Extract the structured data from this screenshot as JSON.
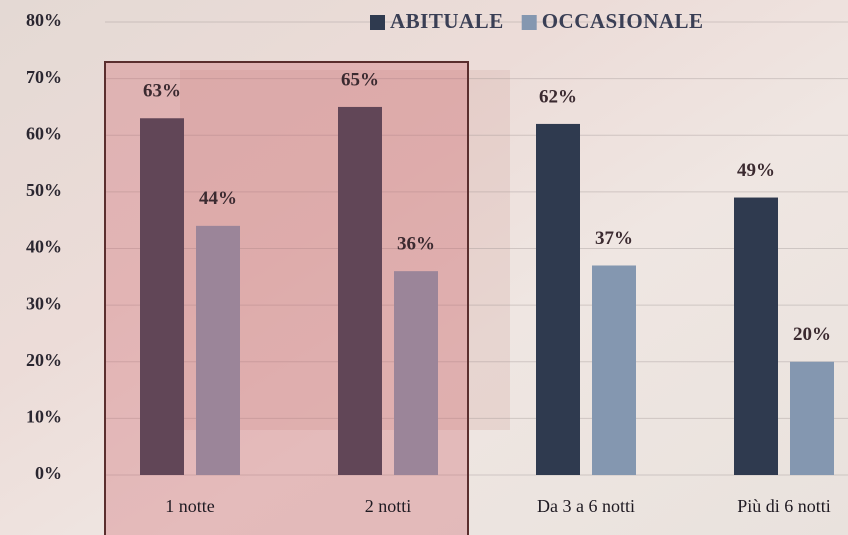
{
  "chart_data": {
    "type": "bar",
    "categories": [
      "1 notte",
      "2 notti",
      "Da 3 a 6 notti",
      "Più di 6 notti"
    ],
    "series": [
      {
        "name": "ABITUALE",
        "color": "#2f3a4f",
        "values": [
          63,
          65,
          62,
          49
        ],
        "value_labels": [
          "63%",
          "65%",
          "62%",
          "49%"
        ]
      },
      {
        "name": "OCCASIONALE",
        "color": "#8497b0",
        "values": [
          44,
          36,
          37,
          20
        ],
        "value_labels": [
          "44%",
          "36%",
          "37%",
          "20%"
        ]
      }
    ],
    "ylim": [
      0,
      80
    ],
    "yticks": [
      {
        "value": 0,
        "label": "0%"
      },
      {
        "value": 10,
        "label": "10%"
      },
      {
        "value": 20,
        "label": "20%"
      },
      {
        "value": 30,
        "label": "30%"
      },
      {
        "value": 40,
        "label": "40%"
      },
      {
        "value": 50,
        "label": "50%"
      },
      {
        "value": 60,
        "label": "60%"
      },
      {
        "value": 70,
        "label": "70%"
      },
      {
        "value": 80,
        "label": "80%"
      }
    ],
    "grid": true,
    "legend": "top"
  }
}
